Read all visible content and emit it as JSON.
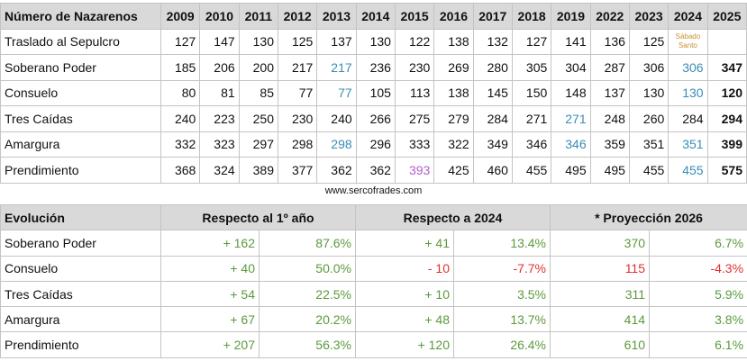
{
  "table1": {
    "header": [
      "Número de Nazarenos",
      "2009",
      "2010",
      "2011",
      "2012",
      "2013",
      "2014",
      "2015",
      "2016",
      "2017",
      "2018",
      "2019",
      "2022",
      "2023",
      "2024",
      "2025"
    ],
    "rows": [
      {
        "name": "Traslado al Sepulcro",
        "values": [
          127,
          147,
          130,
          125,
          137,
          130,
          122,
          138,
          132,
          127,
          141,
          136,
          125,
          "Sábado Santo",
          null
        ]
      },
      {
        "name": "Soberano Poder",
        "values": [
          185,
          206,
          200,
          217,
          217,
          236,
          230,
          269,
          280,
          305,
          304,
          287,
          306,
          306,
          347
        ]
      },
      {
        "name": "Consuelo",
        "values": [
          80,
          81,
          85,
          77,
          77,
          105,
          113,
          138,
          145,
          150,
          148,
          137,
          130,
          130,
          120
        ]
      },
      {
        "name": "Tres Caídas",
        "values": [
          240,
          223,
          250,
          230,
          240,
          266,
          275,
          279,
          284,
          271,
          271,
          248,
          260,
          284,
          294
        ]
      },
      {
        "name": "Amargura",
        "values": [
          332,
          323,
          297,
          298,
          298,
          296,
          333,
          322,
          349,
          346,
          346,
          359,
          351,
          351,
          399
        ]
      },
      {
        "name": "Prendimiento",
        "values": [
          368,
          324,
          389,
          377,
          362,
          362,
          393,
          425,
          460,
          455,
          495,
          495,
          455,
          455,
          575
        ]
      }
    ]
  },
  "footer": "www.sercofrades.com",
  "table2": {
    "header": [
      "Evolución",
      "Respecto al 1º año",
      "Respecto a 2024",
      "* Proyección 2026"
    ],
    "rows": [
      {
        "name": "Soberano Poder",
        "cells": [
          "+ 162",
          "87.6%",
          "+ 41",
          "13.4%",
          370,
          "6.7%"
        ]
      },
      {
        "name": "Consuelo",
        "cells": [
          "+ 40",
          "50.0%",
          "- 10",
          "-7.7%",
          115,
          "-4.3%"
        ]
      },
      {
        "name": "Tres Caídas",
        "cells": [
          "+ 54",
          "22.5%",
          "+ 10",
          "3.5%",
          311,
          "5.9%"
        ]
      },
      {
        "name": "Amargura",
        "cells": [
          "+ 67",
          "20.2%",
          "+ 48",
          "13.7%",
          414,
          "3.8%"
        ]
      },
      {
        "name": "Prendimiento",
        "cells": [
          "+ 207",
          "56.3%",
          "+ 120",
          "26.4%",
          610,
          "6.1%"
        ]
      }
    ]
  }
}
